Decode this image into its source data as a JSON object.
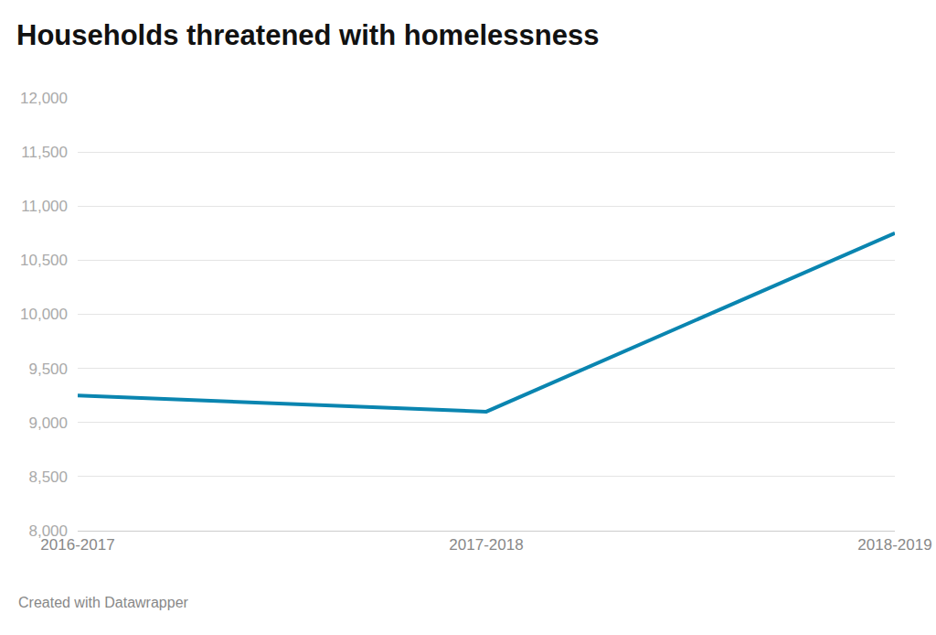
{
  "chart_data": {
    "type": "line",
    "title": "Households threatened with homelessness",
    "source": "Created with Datawrapper",
    "categories": [
      "2016-2017",
      "2017-2018",
      "2018-2019"
    ],
    "values": [
      9250,
      9100,
      10750
    ],
    "color": "#0a85b0",
    "ylim": [
      8000,
      12000
    ],
    "yticks": [
      {
        "value": 8000,
        "label": "8,000"
      },
      {
        "value": 8500,
        "label": "8,500"
      },
      {
        "value": 9000,
        "label": "9,000"
      },
      {
        "value": 9500,
        "label": "9,500"
      },
      {
        "value": 10000,
        "label": "10,000"
      },
      {
        "value": 10500,
        "label": "10,500"
      },
      {
        "value": 11000,
        "label": "11,000"
      },
      {
        "value": 11500,
        "label": "11,500"
      },
      {
        "value": 12000,
        "label": "12,000"
      }
    ],
    "grid": true
  }
}
